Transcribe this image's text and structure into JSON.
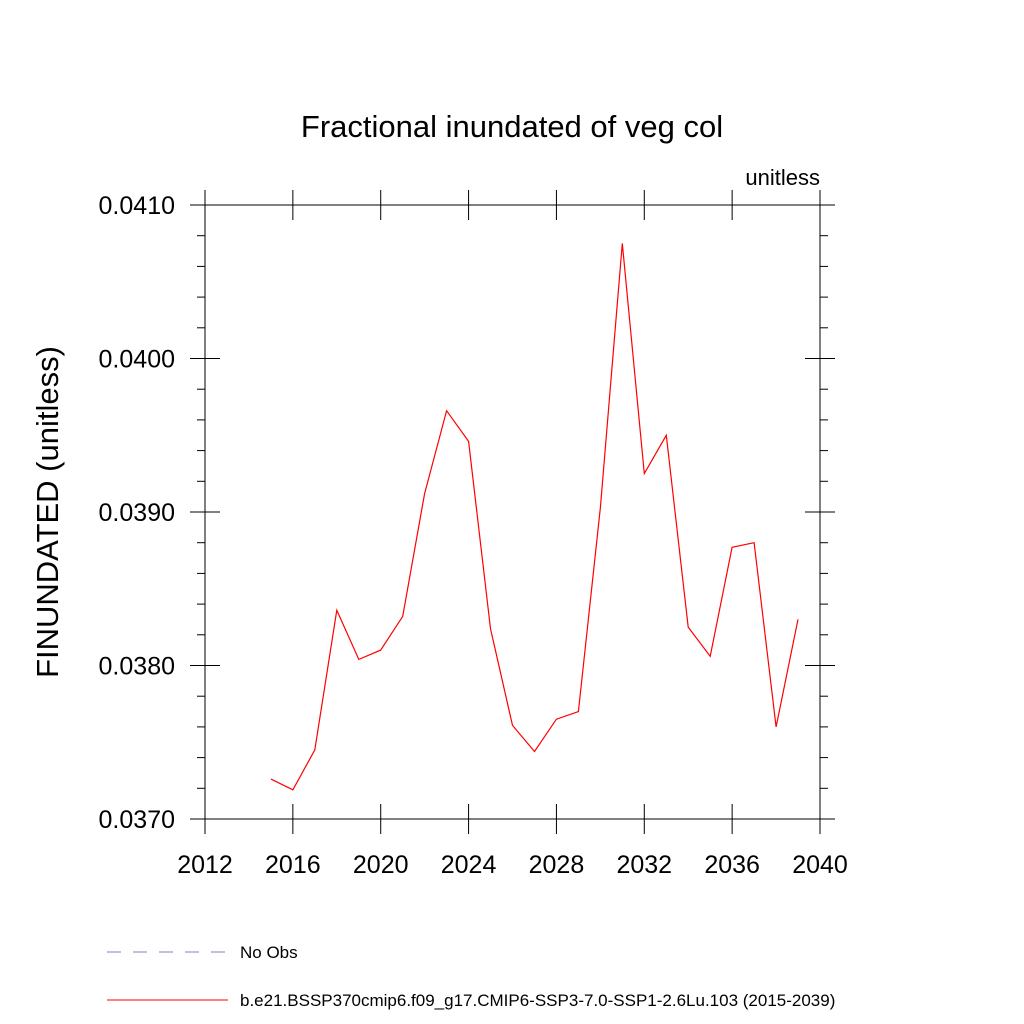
{
  "chart_data": {
    "type": "line",
    "title": "Fractional inundated of veg col",
    "subtitle": "unitless",
    "ylabel": "FINUNDATED  (unitless)",
    "xlabel": "",
    "xlim": [
      2012,
      2040
    ],
    "ylim": [
      0.037,
      0.041
    ],
    "xticks": [
      2012,
      2016,
      2020,
      2024,
      2028,
      2032,
      2036,
      2040
    ],
    "xtick_labels": [
      "2012",
      "2016",
      "2020",
      "2024",
      "2028",
      "2032",
      "2036",
      "2040"
    ],
    "yticks": [
      0.037,
      0.038,
      0.039,
      0.04,
      0.041
    ],
    "ytick_labels": [
      "0.0370",
      "0.0380",
      "0.0390",
      "0.0400",
      "0.0410"
    ],
    "grid": false,
    "legend_position": "bottom",
    "series": [
      {
        "name": "b.e21.BSSP370cmip6.f09_g17.CMIP6-SSP3-7.0-SSP1-2.6Lu.103 (2015-2039)",
        "color": "#ff0000",
        "dash": "solid",
        "x": [
          2015,
          2016,
          2017,
          2018,
          2019,
          2020,
          2021,
          2022,
          2023,
          2024,
          2025,
          2026,
          2027,
          2028,
          2029,
          2030,
          2031,
          2032,
          2033,
          2034,
          2035,
          2036,
          2037,
          2038,
          2039
        ],
        "y": [
          0.03726,
          0.03719,
          0.03745,
          0.03836,
          0.03804,
          0.0381,
          0.03832,
          0.03912,
          0.03966,
          0.03946,
          0.03824,
          0.03761,
          0.03744,
          0.03765,
          0.0377,
          0.03903,
          0.04075,
          0.03925,
          0.0395,
          0.03825,
          0.03806,
          0.03877,
          0.0388,
          0.0376,
          0.0383
        ]
      },
      {
        "name": "No Obs",
        "color": "#8080c0",
        "dash": "dashed",
        "x": [],
        "y": []
      }
    ]
  }
}
